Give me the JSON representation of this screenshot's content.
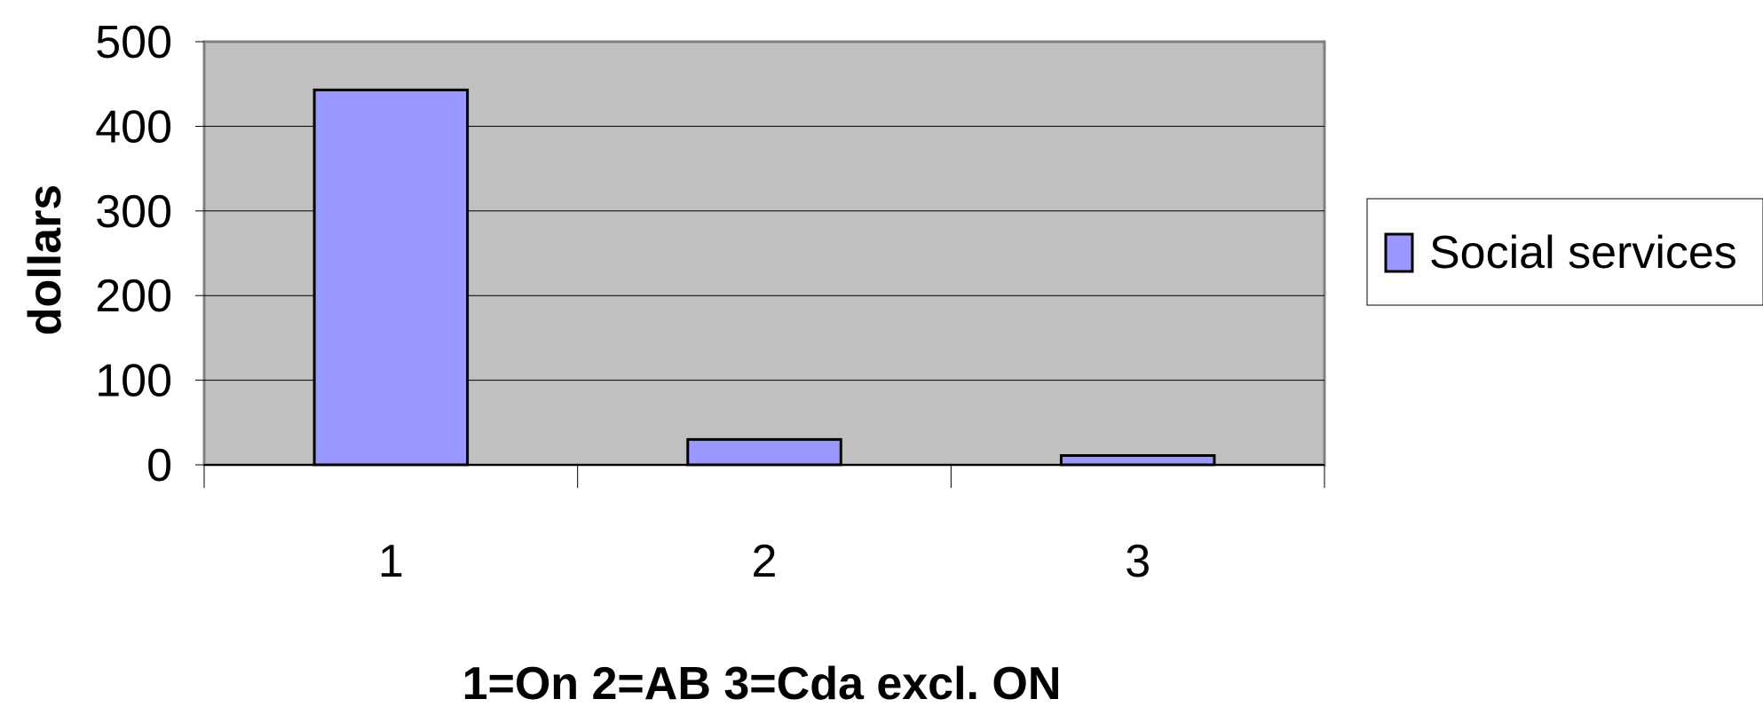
{
  "chart_data": {
    "type": "bar",
    "categories": [
      "1",
      "2",
      "3"
    ],
    "series": [
      {
        "name": "Social services",
        "values": [
          443,
          30,
          11
        ]
      }
    ],
    "xlabel": "1=On 2=AB 3=Cda excl. ON",
    "ylabel": "dollars",
    "ylim": [
      0,
      500
    ],
    "yticks": [
      0,
      100,
      200,
      300,
      400,
      500
    ],
    "grid": true,
    "legend_position": "right",
    "colors": {
      "plot_background": "#c0c0c0",
      "bar_fill": "#9999ff",
      "bar_stroke": "#000000",
      "gridline": "#000000"
    }
  }
}
